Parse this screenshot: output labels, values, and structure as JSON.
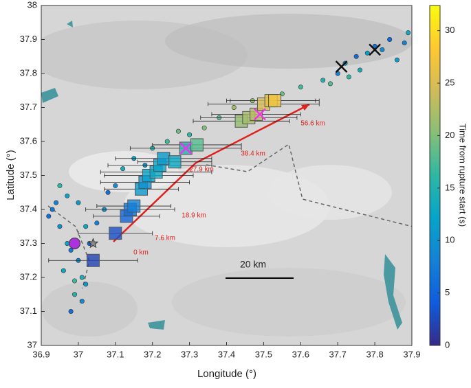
{
  "chart_data": {
    "type": "map-scatter",
    "xlabel": "Longitude (°)",
    "ylabel": "Latitude (°)",
    "xlim": [
      36.9,
      37.9
    ],
    "ylim": [
      37,
      38
    ],
    "xticks": [
      36.9,
      37,
      37.1,
      37.2,
      37.3,
      37.4,
      37.5,
      37.6,
      37.7,
      37.8,
      37.9
    ],
    "yticks": [
      37,
      37.1,
      37.2,
      37.3,
      37.4,
      37.5,
      37.6,
      37.7,
      37.8,
      37.9,
      38
    ],
    "colorbar": {
      "label": "Time from rupture start (s)",
      "lim": [
        0,
        32.4
      ],
      "ticks": [
        0,
        5,
        10,
        15,
        20,
        25,
        30
      ],
      "colormap": [
        "#352a87",
        "#0f5cdd",
        "#1481d6",
        "#06a4ca",
        "#2eb7a4",
        "#87bf77",
        "#d1bb59",
        "#fec832",
        "#f9fb0e"
      ]
    },
    "rupture": {
      "x": [
        37.04,
        37.1,
        37.13,
        37.14,
        37.15,
        37.17,
        37.18,
        37.19,
        37.21,
        37.22,
        37.23,
        37.26,
        37.29,
        37.32,
        37.44,
        37.46,
        37.48,
        37.5,
        37.52,
        37.53
      ],
      "y": [
        37.25,
        37.33,
        37.38,
        37.4,
        37.41,
        37.46,
        37.48,
        37.5,
        37.51,
        37.53,
        37.55,
        37.54,
        37.58,
        37.59,
        37.66,
        37.67,
        37.68,
        37.71,
        37.72,
        37.72
      ],
      "values": [
        2,
        3,
        5,
        6,
        8,
        11,
        10,
        12,
        13,
        12,
        11,
        13,
        15,
        18,
        21,
        22,
        23,
        25,
        26,
        27
      ],
      "xerr": [
        0.12,
        0.1,
        0.09,
        0.12,
        0.1,
        0.1,
        0.12,
        0.12,
        0.15,
        0.14,
        0.13,
        0.1,
        0.15,
        0.12,
        0.13,
        0.13,
        0.12,
        0.15,
        0.12,
        0.12
      ]
    },
    "events": {
      "x": [
        36.92,
        36.94,
        36.95,
        36.97,
        36.98,
        37.0,
        37.01,
        37.02,
        36.96,
        36.99,
        37.03,
        37.05,
        37.07,
        37.08,
        37.1,
        36.97,
        36.95,
        36.93,
        37.0,
        37.02,
        37.12,
        37.15,
        37.18,
        37.2,
        37.24,
        37.27,
        37.3,
        37.34,
        37.38,
        37.42,
        37.47,
        37.55,
        37.6,
        37.66,
        37.7,
        37.72,
        37.75,
        37.78,
        37.8,
        37.82,
        37.84,
        37.86,
        37.88,
        37.89,
        37.76,
        37.73,
        37.68,
        36.98,
        37.01,
        36.99
      ],
      "y": [
        37.38,
        37.42,
        37.35,
        37.3,
        37.28,
        37.25,
        37.2,
        37.18,
        37.22,
        37.15,
        37.3,
        37.36,
        37.4,
        37.45,
        37.47,
        37.44,
        37.47,
        37.4,
        37.42,
        37.35,
        37.52,
        37.55,
        37.53,
        37.58,
        37.6,
        37.63,
        37.62,
        37.64,
        37.67,
        37.7,
        37.72,
        37.74,
        37.76,
        37.78,
        37.8,
        37.83,
        37.85,
        37.86,
        37.88,
        37.87,
        37.9,
        37.84,
        37.89,
        37.92,
        37.81,
        37.79,
        37.77,
        37.1,
        37.13,
        37.19
      ],
      "values": [
        6,
        8,
        10,
        12,
        7,
        9,
        14,
        11,
        13,
        15,
        5,
        8,
        10,
        6,
        9,
        12,
        16,
        7,
        11,
        13,
        14,
        12,
        10,
        15,
        17,
        19,
        16,
        20,
        18,
        22,
        21,
        19,
        17,
        15,
        8,
        10,
        6,
        12,
        7,
        9,
        5,
        11,
        8,
        13,
        14,
        16,
        18,
        6,
        9,
        17
      ]
    },
    "markers": [
      {
        "x": 37.71,
        "y": 37.82,
        "symbol": "x",
        "color": "#111111"
      },
      {
        "x": 37.8,
        "y": 37.87,
        "symbol": "x",
        "color": "#111111"
      },
      {
        "x": 37.29,
        "y": 37.58,
        "symbol": "x",
        "color": "#ee33ee"
      },
      {
        "x": 37.49,
        "y": 37.68,
        "symbol": "x",
        "color": "#ee33ee"
      },
      {
        "x": 36.99,
        "y": 37.3,
        "symbol": "circle",
        "color": "#aa33dd"
      },
      {
        "x": 37.04,
        "y": 37.3,
        "symbol": "star",
        "color": "#888888"
      }
    ],
    "annotations": [
      "0 km",
      "7.6 km",
      "18.9 km",
      "27.9 km",
      "38.4 km",
      "56.6 km"
    ],
    "scale_bar": "20 km"
  }
}
